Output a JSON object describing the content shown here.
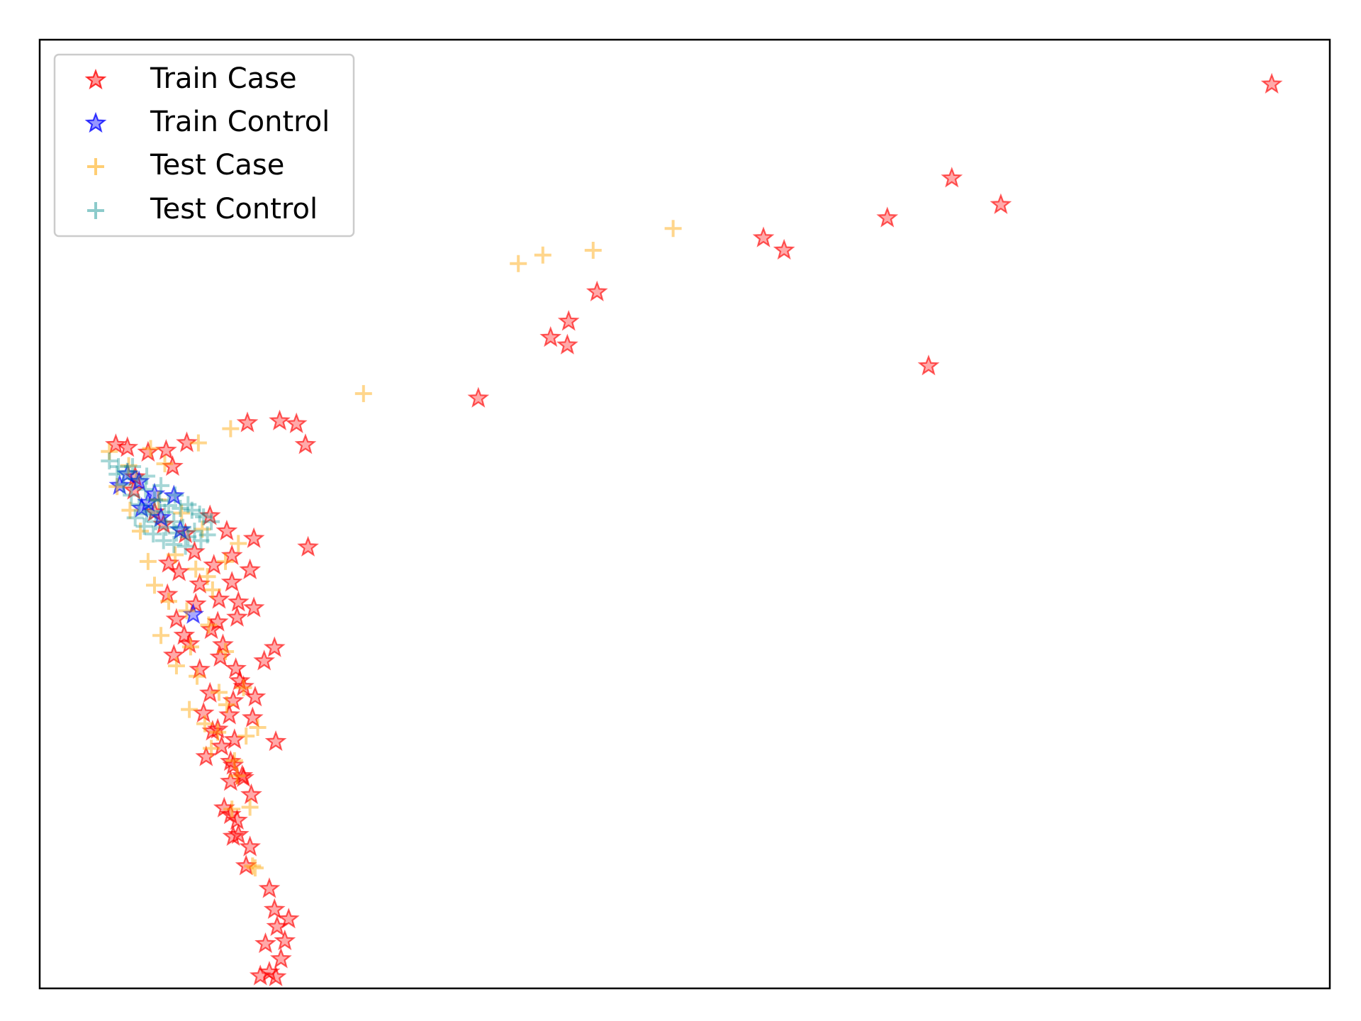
{
  "chart_data": {
    "type": "scatter",
    "title": "",
    "xlabel": "",
    "ylabel": "",
    "xticks": [],
    "yticks": [],
    "xlim": [
      0,
      100
    ],
    "ylim": [
      0,
      100
    ],
    "grid": false,
    "legend_position": "top-left",
    "series": [
      {
        "name": "Train Case",
        "marker": "star",
        "color": "#ff0000",
        "alpha": 0.45,
        "points": [
          [
            95.5,
            95.3
          ],
          [
            70.7,
            85.4
          ],
          [
            74.5,
            82.6
          ],
          [
            65.7,
            81.2
          ],
          [
            56.1,
            79.1
          ],
          [
            57.7,
            77.8
          ],
          [
            68.9,
            65.6
          ],
          [
            43.2,
            73.4
          ],
          [
            41.0,
            70.3
          ],
          [
            39.6,
            68.6
          ],
          [
            40.9,
            67.8
          ],
          [
            34.0,
            62.2
          ],
          [
            20.6,
            57.3
          ],
          [
            16.1,
            59.6
          ],
          [
            18.6,
            59.8
          ],
          [
            19.9,
            59.5
          ],
          [
            11.4,
            57.5
          ],
          [
            10.3,
            55.0
          ],
          [
            9.8,
            56.7
          ],
          [
            8.4,
            56.5
          ],
          [
            6.8,
            57.0
          ],
          [
            5.9,
            57.3
          ],
          [
            7.4,
            53.9
          ],
          [
            20.8,
            46.5
          ],
          [
            14.9,
            45.6
          ],
          [
            16.3,
            44.1
          ],
          [
            14.9,
            42.8
          ],
          [
            15.4,
            40.7
          ],
          [
            13.8,
            38.6
          ],
          [
            14.2,
            36.2
          ],
          [
            18.2,
            35.9
          ],
          [
            17.4,
            34.5
          ],
          [
            15.2,
            33.7
          ],
          [
            15.8,
            31.8
          ],
          [
            16.7,
            30.7
          ],
          [
            18.3,
            26.0
          ],
          [
            13.8,
            27.3
          ],
          [
            15.1,
            26.2
          ],
          [
            14.1,
            25.5
          ],
          [
            14.8,
            23.9
          ],
          [
            14.8,
            21.8
          ],
          [
            15.7,
            22.4
          ],
          [
            16.4,
            20.4
          ],
          [
            15.8,
            22.2
          ],
          [
            15.0,
            23.5
          ],
          [
            14.3,
            19.0
          ],
          [
            15.3,
            17.7
          ],
          [
            16.3,
            14.9
          ],
          [
            15.4,
            16.2
          ],
          [
            14.8,
            18.3
          ],
          [
            15.0,
            16.0
          ],
          [
            16.0,
            12.9
          ],
          [
            17.8,
            10.5
          ],
          [
            18.2,
            8.3
          ],
          [
            19.3,
            7.3
          ],
          [
            18.4,
            6.5
          ],
          [
            19.0,
            5.0
          ],
          [
            17.5,
            4.7
          ],
          [
            18.7,
            3.1
          ],
          [
            17.8,
            1.7
          ],
          [
            18.3,
            1.2
          ],
          [
            17.1,
            1.3
          ],
          [
            15.5,
            32.4
          ],
          [
            13.2,
            31.1
          ],
          [
            12.4,
            33.6
          ],
          [
            11.6,
            36.3
          ],
          [
            10.6,
            38.9
          ],
          [
            9.9,
            41.5
          ],
          [
            10.8,
            43.9
          ],
          [
            12.0,
            46.0
          ],
          [
            13.5,
            44.6
          ],
          [
            12.1,
            40.5
          ],
          [
            11.2,
            37.2
          ],
          [
            10.4,
            35.1
          ],
          [
            12.7,
            29.0
          ],
          [
            13.4,
            27.1
          ],
          [
            14.7,
            28.8
          ],
          [
            12.4,
            42.6
          ],
          [
            13.9,
            41.0
          ],
          [
            16.6,
            40.1
          ],
          [
            15.3,
            39.1
          ],
          [
            11.3,
            47.9
          ],
          [
            8.9,
            50.2
          ],
          [
            7.3,
            52.5
          ],
          [
            9.6,
            48.9
          ],
          [
            14.5,
            48.2
          ],
          [
            13.2,
            49.8
          ],
          [
            16.6,
            47.4
          ],
          [
            13.3,
            37.8
          ],
          [
            14.0,
            34.9
          ],
          [
            15.0,
            30.3
          ],
          [
            16.5,
            28.5
          ],
          [
            10.0,
            44.8
          ],
          [
            12.9,
            24.4
          ]
        ]
      },
      {
        "name": "Train Control",
        "marker": "star",
        "color": "#0000ff",
        "alpha": 0.45,
        "points": [
          [
            6.8,
            54.2
          ],
          [
            7.7,
            53.4
          ],
          [
            8.9,
            52.1
          ],
          [
            10.4,
            51.9
          ],
          [
            11.9,
            39.4
          ],
          [
            7.9,
            50.6
          ],
          [
            9.4,
            49.6
          ],
          [
            10.9,
            48.3
          ],
          [
            6.2,
            53.0
          ],
          [
            8.4,
            51.2
          ]
        ]
      },
      {
        "name": "Test Case",
        "marker": "plus",
        "color": "#ffa500",
        "alpha": 0.45,
        "points": [
          [
            49.1,
            80.1
          ],
          [
            39.0,
            77.3
          ],
          [
            42.9,
            77.8
          ],
          [
            37.1,
            76.4
          ],
          [
            25.1,
            62.7
          ],
          [
            14.8,
            59.0
          ],
          [
            8.6,
            56.9
          ],
          [
            12.3,
            57.5
          ],
          [
            5.4,
            56.6
          ],
          [
            6.9,
            55.1
          ],
          [
            15.4,
            46.9
          ],
          [
            14.4,
            45.0
          ],
          [
            13.0,
            43.4
          ],
          [
            13.4,
            42.0
          ],
          [
            14.4,
            35.5
          ],
          [
            15.8,
            31.7
          ],
          [
            11.6,
            29.4
          ],
          [
            12.8,
            27.9
          ],
          [
            16.9,
            27.5
          ],
          [
            13.3,
            25.3
          ],
          [
            16.0,
            26.6
          ],
          [
            15.3,
            22.4
          ],
          [
            16.3,
            19.1
          ],
          [
            14.9,
            18.9
          ],
          [
            16.7,
            12.7
          ],
          [
            16.5,
            12.9
          ],
          [
            10.6,
            34.0
          ],
          [
            9.4,
            37.2
          ],
          [
            11.4,
            39.8
          ],
          [
            8.9,
            42.5
          ],
          [
            10.5,
            45.7
          ],
          [
            12.6,
            48.4
          ],
          [
            7.8,
            48.2
          ],
          [
            9.2,
            51.5
          ],
          [
            13.1,
            38.3
          ],
          [
            11.7,
            36.0
          ],
          [
            12.2,
            32.9
          ],
          [
            14.5,
            29.9
          ],
          [
            8.4,
            45.0
          ],
          [
            12.1,
            44.2
          ],
          [
            10.0,
            40.8
          ],
          [
            13.9,
            31.2
          ],
          [
            15.1,
            24.0
          ],
          [
            13.8,
            27.0
          ],
          [
            11.0,
            50.1
          ],
          [
            6.0,
            52.9
          ],
          [
            7.0,
            50.4
          ],
          [
            9.7,
            55.3
          ]
        ]
      },
      {
        "name": "Test Control",
        "marker": "plus",
        "color": "#008b8b",
        "alpha": 0.35,
        "points": [
          [
            5.4,
            55.6
          ],
          [
            6.1,
            55.0
          ],
          [
            6.8,
            54.5
          ],
          [
            7.5,
            53.7
          ],
          [
            8.2,
            52.6
          ],
          [
            8.9,
            51.5
          ],
          [
            9.7,
            50.2
          ],
          [
            10.4,
            49.2
          ],
          [
            11.1,
            48.6
          ],
          [
            12.0,
            48.2
          ],
          [
            13.0,
            47.8
          ],
          [
            6.5,
            53.1
          ],
          [
            7.1,
            52.0
          ],
          [
            7.7,
            51.0
          ],
          [
            8.3,
            50.0
          ],
          [
            9.0,
            49.2
          ],
          [
            9.8,
            48.6
          ],
          [
            10.6,
            48.0
          ],
          [
            11.5,
            47.6
          ],
          [
            12.5,
            47.2
          ],
          [
            7.4,
            49.6
          ],
          [
            8.1,
            48.7
          ],
          [
            8.8,
            47.9
          ],
          [
            9.6,
            47.2
          ],
          [
            10.4,
            46.8
          ],
          [
            11.3,
            46.6
          ],
          [
            6.0,
            54.2
          ],
          [
            7.2,
            55.0
          ],
          [
            8.3,
            54.0
          ],
          [
            9.4,
            53.0
          ],
          [
            10.5,
            52.0
          ],
          [
            11.5,
            51.0
          ],
          [
            12.4,
            50.0
          ],
          [
            13.3,
            49.2
          ],
          [
            8.6,
            50.3
          ],
          [
            9.3,
            51.4
          ],
          [
            10.0,
            50.9
          ],
          [
            10.9,
            50.6
          ],
          [
            11.8,
            50.4
          ],
          [
            12.7,
            49.7
          ]
        ]
      }
    ]
  }
}
